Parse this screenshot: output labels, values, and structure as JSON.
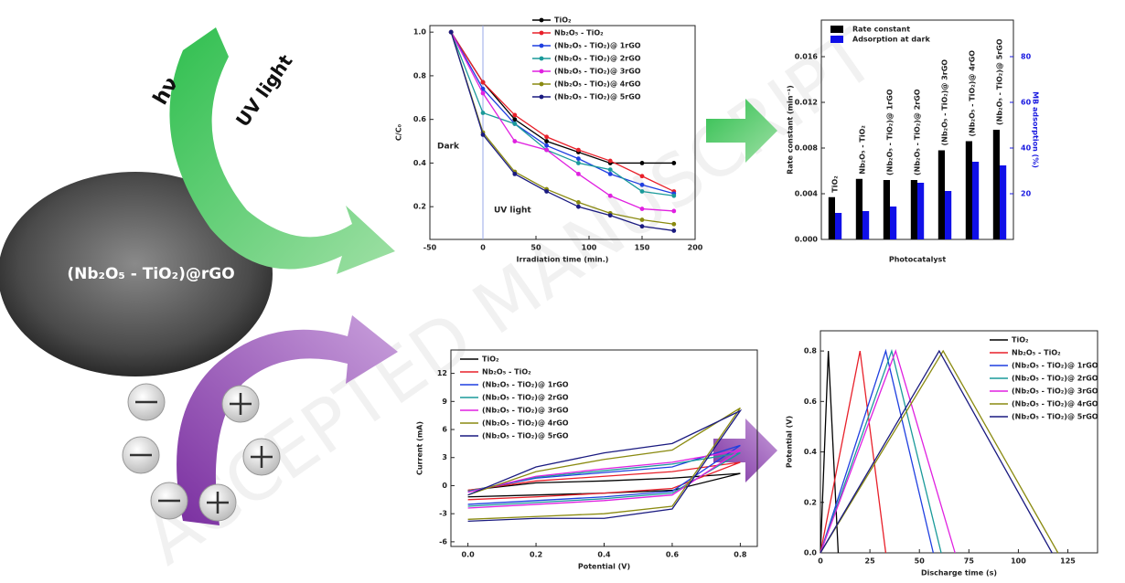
{
  "illustration": {
    "light_symbol": "hν",
    "light_label": "UV light",
    "material_label": "(Nb₂O₅ - TiO₂)@rGO",
    "watermark": "ACCEPTED MANUSCRIPT"
  },
  "chart_data": [
    {
      "type": "line",
      "xlabel": "Irradiation time (min.)",
      "ylabel": "C/C₀",
      "annotations": [
        "Dark",
        "UV light"
      ],
      "markers": true,
      "legend": "upper right",
      "x": [
        -30,
        0,
        30,
        60,
        90,
        120,
        150,
        180
      ],
      "xlim": [
        -50,
        200
      ],
      "xticks": [
        -50,
        0,
        50,
        100,
        150,
        200
      ],
      "ylim": [
        0.05,
        1.03
      ],
      "yticks": [
        0.2,
        0.4,
        0.6,
        0.8,
        {
          "value": 1.0,
          "label": "1.0"
        }
      ],
      "series": [
        {
          "name": "TiO₂",
          "color": "#000000",
          "values": [
            1.0,
            0.77,
            0.6,
            0.5,
            0.45,
            0.4,
            0.4,
            0.4
          ]
        },
        {
          "name": "Nb₂O₅ - TiO₂",
          "color": "#e8202a",
          "values": [
            1.0,
            0.77,
            0.62,
            0.52,
            0.46,
            0.41,
            0.34,
            0.27
          ]
        },
        {
          "name": "(Nb₂O₅ - TiO₂)@ 1rGO",
          "color": "#1f3fe0",
          "values": [
            1.0,
            0.74,
            0.58,
            0.48,
            0.42,
            0.35,
            0.3,
            0.26
          ]
        },
        {
          "name": "(Nb₂O₅ - TiO₂)@ 2rGO",
          "color": "#1a9a9a",
          "values": [
            1.0,
            0.63,
            0.58,
            0.46,
            0.4,
            0.37,
            0.27,
            0.25
          ]
        },
        {
          "name": "(Nb₂O₅ - TiO₂)@ 3rGO",
          "color": "#e020e0",
          "values": [
            1.0,
            0.72,
            0.5,
            0.46,
            0.35,
            0.25,
            0.19,
            0.18
          ]
        },
        {
          "name": "(Nb₂O₅ - TiO₂)@ 4rGO",
          "color": "#8a8a10",
          "values": [
            1.0,
            0.54,
            0.36,
            0.28,
            0.22,
            0.17,
            0.14,
            0.12
          ]
        },
        {
          "name": "(Nb₂O₅ - TiO₂)@ 5rGO",
          "color": "#1a1a80",
          "values": [
            1.0,
            0.53,
            0.35,
            0.27,
            0.2,
            0.16,
            0.11,
            0.09
          ]
        }
      ]
    },
    {
      "type": "bar",
      "xlabel": "Photocatalyst",
      "ylabel": "Rate constant (min⁻¹)",
      "y2label": "MB adsorption (%)",
      "legend": "upper left",
      "categories": [
        "TiO₂",
        "Nb₂O₅ - TiO₂",
        "(Nb₂O₅ - TiO₂)@ 1rGO",
        "(Nb₂O₅ - TiO₂)@ 2rGO",
        "(Nb₂O₅ - TiO₂)@ 3rGO",
        "(Nb₂O₅ - TiO₂)@ 4rGO",
        "(Nb₂O₅ - TiO₂)@ 5rGO"
      ],
      "ylim": [
        0,
        0.0192
      ],
      "yticks": [
        {
          "value": 0,
          "label": "0.000"
        },
        0.004,
        0.008,
        0.012,
        0.016
      ],
      "y2lim": [
        0,
        96
      ],
      "y2ticks": [
        20,
        40,
        60,
        80
      ],
      "y2color": "#1a1ae0",
      "series": [
        {
          "name": "Rate constant",
          "color": "#000000",
          "values": [
            0.0037,
            0.0053,
            0.0052,
            0.0052,
            0.0078,
            0.0086,
            0.0096
          ]
        },
        {
          "name": "Adsorption at dark",
          "color": "#1010e8",
          "axis": "y2",
          "values": [
            11.6,
            12.4,
            14.4,
            24.8,
            21.2,
            34,
            32.4
          ]
        }
      ]
    },
    {
      "type": "line",
      "xlabel": "Potential (V)",
      "ylabel": "Current (mA)",
      "legend": "upper left",
      "x": [
        0,
        0.2,
        0.4,
        0.6,
        0.8,
        0.6,
        0.4,
        0.2,
        0
      ],
      "xlim": [
        -0.05,
        0.85
      ],
      "xticks": [
        {
          "value": 0,
          "label": "0.0"
        },
        0.2,
        0.4,
        0.6,
        0.8
      ],
      "ylim": [
        -6.5,
        14.5
      ],
      "yticks": [
        -6,
        -3,
        0,
        3,
        6,
        9,
        12
      ],
      "series": [
        {
          "name": "TiO₂",
          "color": "#000000",
          "values": [
            -0.5,
            0.3,
            0.5,
            0.8,
            1.3,
            -0.5,
            -0.8,
            -1,
            -1.2
          ]
        },
        {
          "name": "Nb₂O₅ - TiO₂",
          "color": "#e8202a",
          "values": [
            -0.5,
            0.5,
            1.0,
            1.5,
            2.5,
            -0.3,
            -0.8,
            -1.2,
            -1.5
          ]
        },
        {
          "name": "(Nb₂O₅ - TiO₂)@ 1rGO",
          "color": "#1f3fe0",
          "values": [
            -0.6,
            0.8,
            1.4,
            2.0,
            4.3,
            -0.6,
            -1.2,
            -1.6,
            -2
          ]
        },
        {
          "name": "(Nb₂O₅ - TiO₂)@ 2rGO",
          "color": "#1a9a9a",
          "values": [
            -0.6,
            0.9,
            1.6,
            2.3,
            3.5,
            -0.8,
            -1.4,
            -1.8,
            -2.2
          ]
        },
        {
          "name": "(Nb₂O₅ - TiO₂)@ 3rGO",
          "color": "#e020e0",
          "values": [
            -0.7,
            1.0,
            1.8,
            2.5,
            3.8,
            -1,
            -1.6,
            -2,
            -2.4
          ]
        },
        {
          "name": "(Nb₂O₅ - TiO₂)@ 4rGO",
          "color": "#8a8a10",
          "values": [
            -1,
            1.5,
            2.8,
            3.8,
            8.3,
            -2.2,
            -3,
            -3.3,
            -3.6
          ]
        },
        {
          "name": "(Nb₂O₅ - TiO₂)@ 5rGO",
          "color": "#1a1a80",
          "values": [
            -1,
            2,
            3.5,
            4.5,
            8,
            -2.5,
            -3.5,
            -3.5,
            -3.8
          ]
        }
      ]
    },
    {
      "type": "line",
      "xlabel": "Discharge time (s)",
      "ylabel": "Potential (V)",
      "legend": "upper right",
      "xlim": [
        0,
        140
      ],
      "xticks": [
        0,
        25,
        50,
        75,
        100,
        125
      ],
      "ylim": [
        0,
        0.88
      ],
      "yticks": [
        {
          "value": 0,
          "label": "0.0"
        },
        0.2,
        0.4,
        0.6,
        0.8
      ],
      "series": [
        {
          "name": "TiO₂",
          "color": "#000000",
          "x": [
            0,
            4,
            9
          ],
          "values": [
            0,
            0.8,
            0
          ]
        },
        {
          "name": "Nb₂O₅ - TiO₂",
          "color": "#e8202a",
          "x": [
            0,
            20,
            33
          ],
          "values": [
            0,
            0.8,
            0
          ]
        },
        {
          "name": "(Nb₂O₅ - TiO₂)@ 1rGO",
          "color": "#1f3fe0",
          "x": [
            0,
            33,
            57
          ],
          "values": [
            0,
            0.8,
            0
          ]
        },
        {
          "name": "(Nb₂O₅ - TiO₂)@ 2rGO",
          "color": "#1a9a9a",
          "x": [
            0,
            36,
            61
          ],
          "values": [
            0,
            0.8,
            0
          ]
        },
        {
          "name": "(Nb₂O₅ - TiO₂)@ 3rGO",
          "color": "#e020e0",
          "x": [
            0,
            38,
            68
          ],
          "values": [
            0,
            0.8,
            0
          ]
        },
        {
          "name": "(Nb₂O₅ - TiO₂)@ 4rGO",
          "color": "#8a8a10",
          "x": [
            0,
            62,
            120
          ],
          "values": [
            0,
            0.8,
            0
          ]
        },
        {
          "name": "(Nb₂O₅ - TiO₂)@ 5rGO",
          "color": "#1a1a80",
          "x": [
            0,
            60,
            117
          ],
          "values": [
            0,
            0.8,
            0
          ]
        }
      ]
    }
  ]
}
